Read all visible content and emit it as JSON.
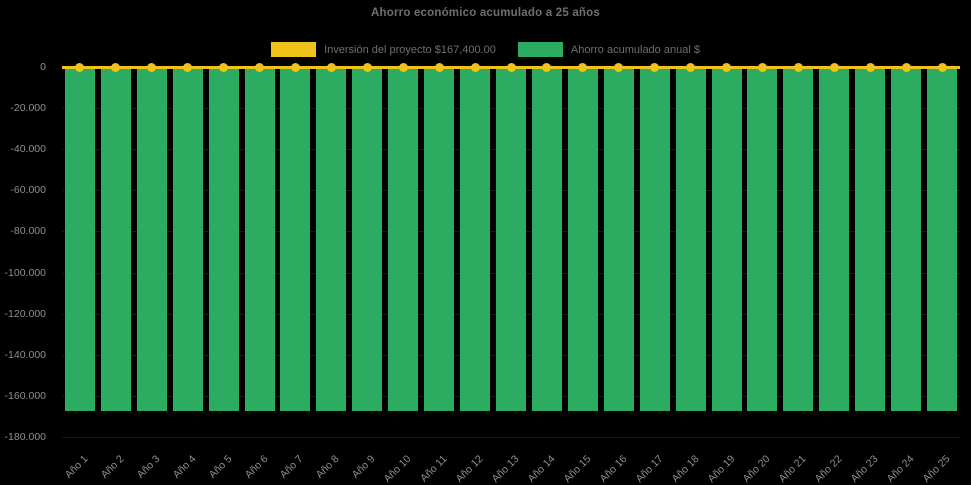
{
  "page": {
    "background_color": "#000000"
  },
  "chart_data": {
    "type": "bar",
    "title": "Ahorro económico acumulado a 25 años",
    "legend_position": "top",
    "grid": true,
    "categories": [
      "Año 1",
      "Año 2",
      "Año 3",
      "Año 4",
      "Año 5",
      "Año 6",
      "Año 7",
      "Año 8",
      "Año 9",
      "Año 10",
      "Año 11",
      "Año 12",
      "Año 13",
      "Año 14",
      "Año 15",
      "Año 16",
      "Año 17",
      "Año 18",
      "Año 19",
      "Año 20",
      "Año 21",
      "Año 22",
      "Año 23",
      "Año 24",
      "Año 25"
    ],
    "series": [
      {
        "name": "Inversión del proyecto $167,400.00",
        "type": "line",
        "color": "#EFC319",
        "marker": "circle",
        "values": [
          0,
          0,
          0,
          0,
          0,
          0,
          0,
          0,
          0,
          0,
          0,
          0,
          0,
          0,
          0,
          0,
          0,
          0,
          0,
          0,
          0,
          0,
          0,
          0,
          0
        ]
      },
      {
        "name": "Ahorro acumulado anual $",
        "type": "bar",
        "color": "#2BAC60",
        "values": [
          -167400,
          -167400,
          -167400,
          -167400,
          -167400,
          -167400,
          -167400,
          -167400,
          -167400,
          -167400,
          -167400,
          -167400,
          -167400,
          -167400,
          -167400,
          -167400,
          -167400,
          -167400,
          -167400,
          -167400,
          -167400,
          -167400,
          -167400,
          -167400,
          -167400
        ]
      }
    ],
    "y_axis": {
      "min": -180000,
      "max": 0,
      "tick_step": -20000,
      "tick_values": [
        0,
        -20000,
        -40000,
        -60000,
        -80000,
        -100000,
        -120000,
        -140000,
        -160000,
        -180000
      ],
      "tick_labels": [
        "0",
        "-20.000",
        "-40.000",
        "-60.000",
        "-80.000",
        "-100.000",
        "-120.000",
        "-140.000",
        "-160.000",
        "-180.000"
      ]
    },
    "colors": {
      "title_text": "#6F6F6F",
      "legend_text": "#6F6F6F",
      "axis_text": "#8F8F8F",
      "background": "#000000"
    }
  }
}
